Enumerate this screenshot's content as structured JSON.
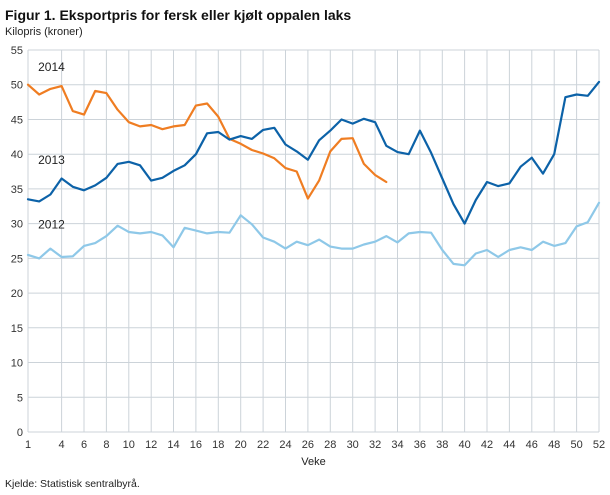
{
  "title": "Figur 1. Eksportpris for fersk eller kjølt oppalen laks",
  "y_axis_title": "Kilopris (kroner)",
  "x_axis_title": "Veke",
  "source": "Kjelde: Statistisk sentralbyrå.",
  "colors": {
    "s2014": "#ef7d22",
    "s2013": "#0c62a8",
    "s2012": "#8ec8e8",
    "grid": "#ccd3d9",
    "text": "#333333"
  },
  "chart_data": {
    "type": "line",
    "xlim": [
      1,
      52
    ],
    "ylim": [
      0,
      55
    ],
    "x_ticks": [
      1,
      4,
      6,
      8,
      10,
      12,
      14,
      16,
      18,
      20,
      22,
      24,
      26,
      28,
      30,
      32,
      34,
      36,
      38,
      40,
      42,
      44,
      46,
      48,
      50,
      52
    ],
    "y_gridlines": [
      0,
      5,
      10,
      15,
      20,
      25,
      30,
      35,
      40,
      45,
      50,
      55
    ],
    "x_unit": "Veke",
    "y_unit": "Kilopris (kroner)",
    "series": [
      {
        "name": "2014",
        "color_key": "s2014",
        "start_week": 1,
        "values": [
          50.0,
          48.6,
          49.4,
          49.8,
          46.2,
          45.7,
          49.1,
          48.8,
          46.4,
          44.6,
          44.0,
          44.2,
          43.6,
          44.0,
          44.2,
          47.0,
          47.3,
          45.4,
          42.2,
          41.5,
          40.6,
          40.1,
          39.4,
          38.0,
          37.5,
          33.6,
          36.2,
          40.4,
          42.2,
          42.3,
          38.6,
          37.0,
          36.0
        ]
      },
      {
        "name": "2013",
        "color_key": "s2013",
        "start_week": 1,
        "values": [
          33.5,
          33.2,
          34.2,
          36.5,
          35.3,
          34.8,
          35.5,
          36.6,
          38.6,
          38.9,
          38.4,
          36.2,
          36.6,
          37.6,
          38.4,
          40.0,
          43.0,
          43.2,
          42.1,
          42.6,
          42.2,
          43.5,
          43.8,
          41.4,
          40.4,
          39.2,
          42.0,
          43.4,
          45.0,
          44.4,
          45.1,
          44.6,
          41.2,
          40.3,
          40.0,
          43.4,
          40.2,
          36.5,
          32.8,
          30.0,
          33.4,
          36.0,
          35.4,
          35.8,
          38.2,
          39.5,
          37.2,
          40.0,
          48.2,
          48.6,
          48.4,
          50.4
        ]
      },
      {
        "name": "2012",
        "color_key": "s2012",
        "start_week": 1,
        "values": [
          25.5,
          25.0,
          26.4,
          25.2,
          25.3,
          26.8,
          27.2,
          28.2,
          29.7,
          28.8,
          28.6,
          28.8,
          28.3,
          26.6,
          29.4,
          29.0,
          28.6,
          28.8,
          28.7,
          31.2,
          29.9,
          28.0,
          27.4,
          26.4,
          27.4,
          26.9,
          27.7,
          26.7,
          26.4,
          26.4,
          27.0,
          27.4,
          28.2,
          27.3,
          28.6,
          28.8,
          28.7,
          26.2,
          24.2,
          24.0,
          25.7,
          26.2,
          25.2,
          26.2,
          26.6,
          26.2,
          27.4,
          26.8,
          27.2,
          29.6,
          30.2,
          33.0
        ]
      }
    ],
    "annotations": [
      {
        "label": "2014",
        "week": 1.9,
        "value": 52.0
      },
      {
        "label": "2013",
        "week": 1.9,
        "value": 38.6
      },
      {
        "label": "2012",
        "week": 1.9,
        "value": 29.3
      }
    ],
    "grid": true,
    "legend_position": "inline-labels"
  }
}
